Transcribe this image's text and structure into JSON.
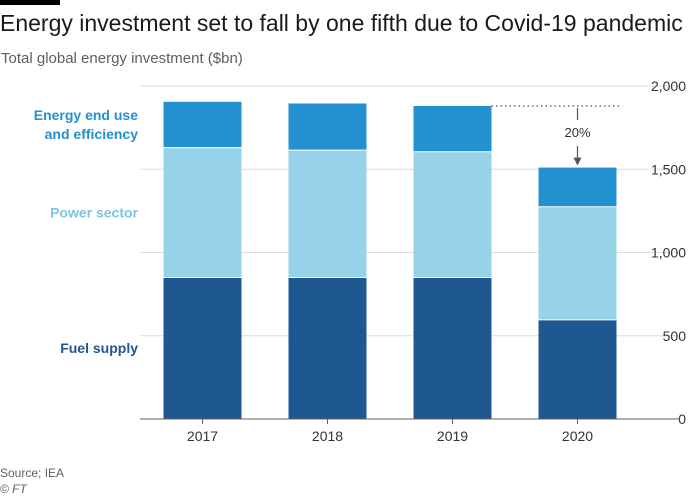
{
  "header": {
    "title": "Energy investment set to fall by one fifth due to Covid-19 pandemic",
    "subtitle": "Total global energy investment ($bn)"
  },
  "footer": {
    "source": "Source; IEA",
    "copyright": "© FT"
  },
  "colors": {
    "fuel": "#1f5791",
    "power": "#96d3e8",
    "enduse": "#2390d0",
    "grid": "#e0dcd6",
    "axis": "#66605c",
    "tick": "#333333"
  },
  "chart_data": {
    "type": "bar",
    "stacked": true,
    "categories": [
      "2017",
      "2018",
      "2019",
      "2020"
    ],
    "series": [
      {
        "name": "Fuel supply",
        "values": [
          850,
          850,
          850,
          595
        ]
      },
      {
        "name": "Power sector",
        "values": [
          780,
          765,
          755,
          680
        ]
      },
      {
        "name": "Energy end use and efficiency",
        "name_lines": [
          "Energy end use",
          "and efficiency"
        ],
        "values": [
          275,
          280,
          275,
          235
        ]
      }
    ],
    "ylim": [
      0,
      2000
    ],
    "yticks": [
      0,
      500,
      1000,
      1500,
      2000
    ],
    "ytick_labels": [
      "0",
      "500",
      "1,000",
      "1,500",
      "2,000"
    ],
    "y_axis_side": "right",
    "grid": true,
    "legend": "inline-left",
    "annotation": {
      "text": "20%",
      "category": "2020",
      "from_value": 1880
    },
    "xlabel": "",
    "ylabel": ""
  }
}
